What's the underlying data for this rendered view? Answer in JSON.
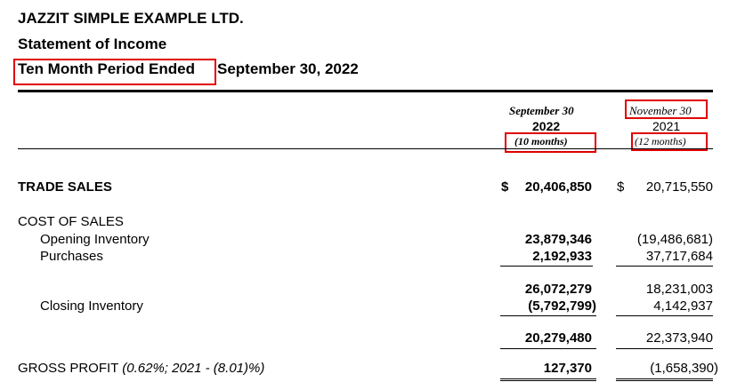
{
  "header": {
    "company": "JAZZIT SIMPLE EXAMPLE LTD.",
    "statement": "Statement of Income",
    "period_label": "Ten Month Period Ended",
    "period_date": "September 30, 2022"
  },
  "columns": {
    "current": {
      "month": "September 30",
      "year": "2022",
      "months": "(10 months)"
    },
    "prior": {
      "month": "November 30",
      "year": "2021",
      "months": "(12 months)"
    }
  },
  "rows": {
    "trade_sales": {
      "label": "TRADE SALES",
      "currency": "$",
      "current": "20,406,850",
      "prior": "20,715,550"
    },
    "cost_of_sales": {
      "label": "COST OF SALES"
    },
    "opening_inventory": {
      "label": "Opening Inventory",
      "current": "23,879,346",
      "prior": "(19,486,681)"
    },
    "purchases": {
      "label": "Purchases",
      "current": "2,192,933",
      "prior": "37,717,684"
    },
    "subtotal": {
      "current": "26,072,279",
      "prior": "18,231,003"
    },
    "closing_inventory": {
      "label": "Closing Inventory",
      "current": "(5,792,799)",
      "prior": "4,142,937"
    },
    "cost_total": {
      "current": "20,279,480",
      "prior": "22,373,940"
    },
    "gross_profit": {
      "label": "GROSS PROFIT",
      "note": "(0.62%; 2021 - (8.01)%)",
      "current": "127,370",
      "prior": "(1,658,390)"
    }
  },
  "highlight_color": "#e00000"
}
